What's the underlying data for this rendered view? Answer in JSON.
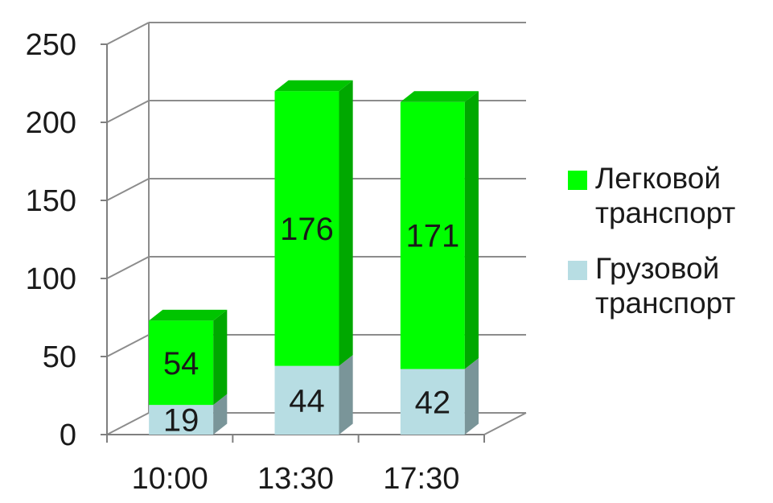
{
  "chart_data": {
    "type": "bar",
    "stacked": true,
    "three_d": true,
    "categories": [
      "10:00",
      "13:30",
      "17:30"
    ],
    "series": [
      {
        "name": "Грузовой транспорт",
        "values": [
          19,
          44,
          42
        ],
        "color": "#b7dde3",
        "side_color": "#7a9599",
        "top_color": "#8fbac0"
      },
      {
        "name": "Легковой транспорт",
        "values": [
          54,
          176,
          171
        ],
        "color": "#00ff00",
        "side_color": "#00a800",
        "top_color": "#00c400"
      }
    ],
    "legend": {
      "placement": "right",
      "entries": [
        {
          "line1": "Легковой",
          "line2": "транспорт",
          "color": "#00ff00"
        },
        {
          "line1": "Грузовой",
          "line2": "транспорт",
          "color": "#b7dde3"
        }
      ]
    },
    "yticks": [
      "0",
      "50",
      "100",
      "150",
      "200",
      "250"
    ],
    "ylim": [
      0,
      250
    ],
    "grid": true,
    "title": "",
    "xlabel": "",
    "ylabel": ""
  }
}
